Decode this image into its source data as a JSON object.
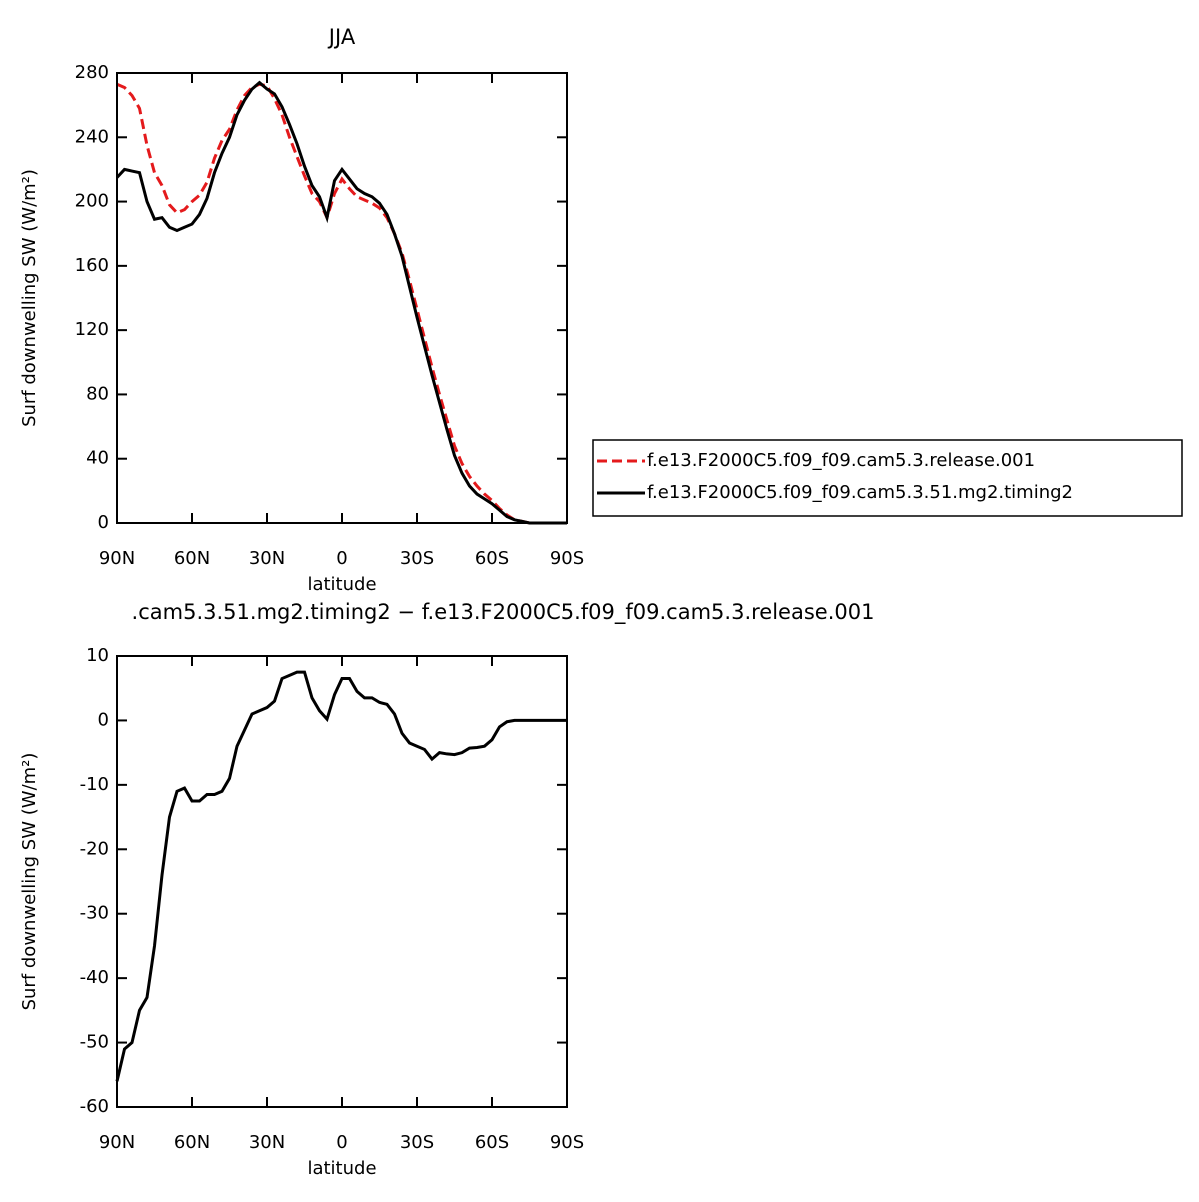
{
  "chart_data": [
    {
      "type": "line",
      "title": "JJA",
      "xlabel": "latitude",
      "ylabel": "Surf downwelling SW (W/m²)",
      "x": [
        90,
        87,
        84,
        81,
        78,
        75,
        72,
        69,
        66,
        63,
        60,
        57,
        54,
        51,
        48,
        45,
        42,
        39,
        36,
        33,
        30,
        27,
        24,
        21,
        18,
        15,
        12,
        9,
        6,
        3,
        0,
        -3,
        -6,
        -9,
        -12,
        -15,
        -18,
        -21,
        -24,
        -27,
        -30,
        -33,
        -36,
        -39,
        -42,
        -45,
        -48,
        -51,
        -54,
        -57,
        -60,
        -63,
        -66,
        -69,
        -72,
        -75,
        -78,
        -81,
        -84,
        -87,
        -90
      ],
      "series": [
        {
          "name": "f.e13.F2000C5.f09_f09.cam5.3.release.001",
          "color": "#e41a1c",
          "dash": true,
          "values": [
            273,
            271,
            266,
            258,
            235,
            218,
            210,
            198,
            193,
            195,
            200,
            204,
            212,
            227,
            238,
            245,
            257,
            266,
            271,
            273,
            272,
            264,
            254,
            240,
            228,
            216,
            205,
            200,
            190,
            205,
            214,
            208,
            203,
            201,
            199,
            196,
            190,
            180,
            168,
            151,
            133,
            115,
            97,
            80,
            64,
            48,
            37,
            29,
            23,
            18,
            14,
            9,
            5,
            2,
            1,
            0,
            0,
            0,
            0,
            0,
            0
          ]
        },
        {
          "name": "f.e13.F2000C5.f09_f09.cam5.3.51.mg2.timing2",
          "color": "#000000",
          "dash": false,
          "values": [
            215,
            220,
            219,
            218,
            200,
            189,
            190,
            184,
            182,
            184,
            186,
            192,
            202,
            218,
            230,
            240,
            254,
            263,
            270,
            274,
            270,
            267,
            259,
            248,
            236,
            222,
            210,
            203,
            190,
            213,
            220,
            214,
            208,
            205,
            203,
            199,
            192,
            180,
            166,
            147,
            128,
            110,
            92,
            75,
            58,
            42,
            31,
            23,
            18,
            15,
            12,
            8,
            4,
            2,
            1,
            0,
            0,
            0,
            0,
            0,
            0
          ]
        }
      ],
      "xlim": [
        90,
        -90
      ],
      "xticks": [
        {
          "value": 90,
          "label": "90N"
        },
        {
          "value": 60,
          "label": "60N"
        },
        {
          "value": 30,
          "label": "30N"
        },
        0,
        {
          "value": -30,
          "label": "30S"
        },
        {
          "value": -60,
          "label": "60S"
        },
        {
          "value": -90,
          "label": "90S"
        }
      ],
      "ylim": [
        0,
        280
      ],
      "yticks": [
        0,
        40,
        80,
        120,
        160,
        200,
        240,
        280
      ],
      "legend": "right"
    },
    {
      "type": "line",
      "title": ".cam5.3.51.mg2.timing2 − f.e13.F2000C5.f09_f09.cam5.3.release.001",
      "xlabel": "latitude",
      "ylabel": "Surf downwelling SW (W/m²)",
      "x": [
        90,
        87,
        84,
        81,
        78,
        75,
        72,
        69,
        66,
        63,
        60,
        57,
        54,
        51,
        48,
        45,
        42,
        39,
        36,
        33,
        30,
        27,
        24,
        21,
        18,
        15,
        12,
        9,
        6,
        3,
        0,
        -3,
        -6,
        -9,
        -12,
        -15,
        -18,
        -21,
        -24,
        -27,
        -30,
        -33,
        -36,
        -39,
        -42,
        -45,
        -48,
        -51,
        -54,
        -57,
        -60,
        -63,
        -66,
        -69,
        -72,
        -75,
        -78,
        -81,
        -84,
        -87,
        -90
      ],
      "series": [
        {
          "color": "#000000",
          "dash": false,
          "values": [
            -56,
            -51,
            -50,
            -45,
            -43,
            -35,
            -24,
            -15,
            -11,
            -10.5,
            -12.5,
            -12.5,
            -11.5,
            -11.5,
            -11,
            -9,
            -4,
            -1.5,
            1,
            1.5,
            2,
            3,
            6.5,
            7,
            7.5,
            7.5,
            3.5,
            1.5,
            0.2,
            4,
            6.5,
            6.5,
            4.5,
            3.5,
            3.5,
            2.8,
            2.5,
            1,
            -2,
            -3.5,
            -4,
            -4.5,
            -6,
            -5,
            -5.2,
            -5.3,
            -5,
            -4.3,
            -4.2,
            -4,
            -3,
            -1,
            -0.2,
            0,
            0,
            0,
            0,
            0,
            0,
            0,
            0
          ]
        }
      ],
      "xlim": [
        90,
        -90
      ],
      "xticks": [
        {
          "value": 90,
          "label": "90N"
        },
        {
          "value": 60,
          "label": "60N"
        },
        {
          "value": 30,
          "label": "30N"
        },
        0,
        {
          "value": -30,
          "label": "30S"
        },
        {
          "value": -60,
          "label": "60S"
        },
        {
          "value": -90,
          "label": "90S"
        }
      ],
      "ylim": [
        -60,
        10
      ],
      "yticks": [
        -60,
        -50,
        -40,
        -30,
        -20,
        -10,
        0,
        10
      ]
    }
  ]
}
